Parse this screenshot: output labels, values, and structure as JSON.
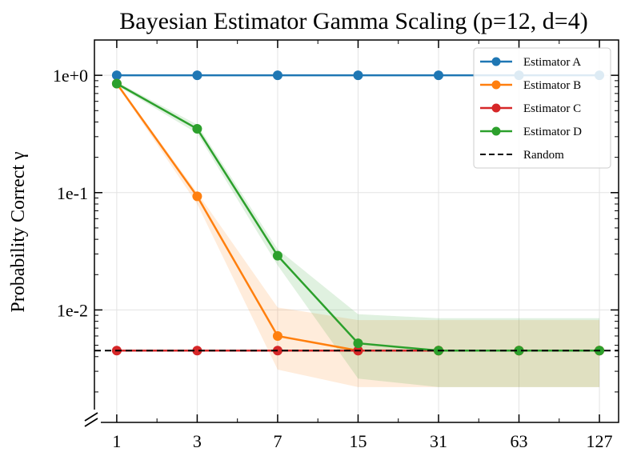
{
  "chart_data": {
    "type": "line",
    "title": "Bayesian Estimator Gamma Scaling (p=12, d=4)",
    "xlabel": "",
    "ylabel": "Probability Correct γ",
    "x": [
      1,
      3,
      7,
      15,
      31,
      63,
      127
    ],
    "x_tick_labels": [
      "1",
      "3",
      "7",
      "15",
      "31",
      "63",
      "127"
    ],
    "y_scale": "log",
    "ylim": [
      0.0011,
      2.0
    ],
    "y_ticks": [
      1,
      0.1,
      0.01
    ],
    "y_tick_labels": [
      "1e+0",
      "1e-1",
      "1e-2"
    ],
    "grid": true,
    "legend_position": "top-right",
    "series": [
      {
        "name": "Estimator A",
        "color": "#1f77b4",
        "values": [
          1.0,
          1.0,
          1.0,
          1.0,
          1.0,
          1.0,
          1.0
        ]
      },
      {
        "name": "Estimator B",
        "color": "#ff7f0e",
        "values": [
          0.85,
          0.093,
          0.006,
          0.0045,
          0.0045,
          0.0045,
          0.0045
        ],
        "band_low": [
          0.83,
          0.08,
          0.0031,
          0.0022,
          0.0022,
          0.0022,
          0.0022
        ],
        "band_high": [
          0.87,
          0.1,
          0.0105,
          0.0082,
          0.0082,
          0.0082,
          0.0082
        ]
      },
      {
        "name": "Estimator C",
        "color": "#d62728",
        "values": [
          0.0045,
          0.0045,
          0.0045,
          0.0045,
          0.0045,
          0.0045,
          0.0045
        ]
      },
      {
        "name": "Estimator D",
        "color": "#2ca02c",
        "values": [
          0.85,
          0.35,
          0.029,
          0.0052,
          0.0045,
          0.0045,
          0.0045
        ],
        "band_low": [
          0.82,
          0.32,
          0.024,
          0.0026,
          0.0022,
          0.0022,
          0.0022
        ],
        "band_high": [
          0.88,
          0.38,
          0.033,
          0.0092,
          0.0085,
          0.0085,
          0.0085
        ]
      }
    ],
    "reference_line": {
      "name": "Random",
      "value": 0.0045,
      "style": "dashed",
      "color": "#000000"
    }
  }
}
